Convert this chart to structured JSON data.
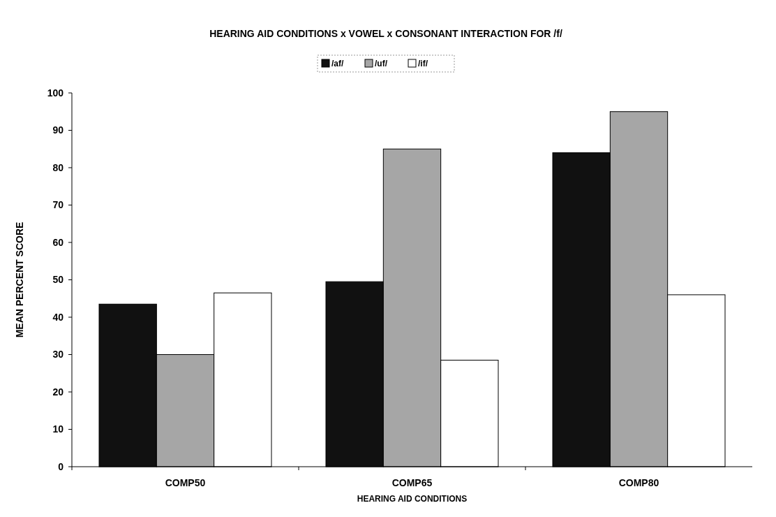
{
  "chart_data": {
    "type": "bar",
    "title": "HEARING AID CONDITIONS x VOWEL x CONSONANT INTERACTION FOR /f/",
    "xlabel": "HEARING AID CONDITIONS",
    "ylabel": "MEAN PERCENT SCORE",
    "categories": [
      "COMP50",
      "COMP65",
      "COMP80"
    ],
    "series": [
      {
        "name": "/af/",
        "color": "#111111",
        "values": [
          43.5,
          49.5,
          84
        ]
      },
      {
        "name": "/uf/",
        "color": "#a6a6a6",
        "values": [
          30,
          85,
          95
        ]
      },
      {
        "name": "/if/",
        "color": "#ffffff",
        "values": [
          46.5,
          28.5,
          46
        ]
      }
    ],
    "ylim": [
      0,
      100
    ],
    "yticks": [
      0,
      10,
      20,
      30,
      40,
      50,
      60,
      70,
      80,
      90,
      100
    ],
    "legend": "top",
    "grid": false
  }
}
